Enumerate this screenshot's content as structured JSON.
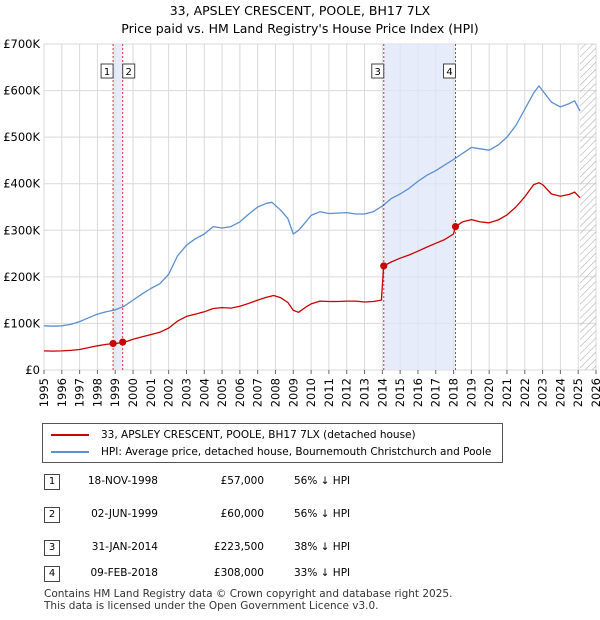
{
  "title": {
    "line1": "33, APSLEY CRESCENT, POOLE, BH17 7LX",
    "line2": "Price paid vs. HM Land Registry's House Price Index (HPI)"
  },
  "chart_data": {
    "type": "line",
    "xlim": [
      1995,
      2026
    ],
    "ylim": [
      0,
      700000
    ],
    "yticks": [
      {
        "value": 0,
        "label": "£0"
      },
      {
        "value": 100000,
        "label": "£100K"
      },
      {
        "value": 200000,
        "label": "£200K"
      },
      {
        "value": 300000,
        "label": "£300K"
      },
      {
        "value": 400000,
        "label": "£400K"
      },
      {
        "value": 500000,
        "label": "£500K"
      },
      {
        "value": 600000,
        "label": "£600K"
      },
      {
        "value": 700000,
        "label": "£700K"
      }
    ],
    "xticks": [
      "1995",
      "1996",
      "1997",
      "1998",
      "1999",
      "2000",
      "2001",
      "2002",
      "2003",
      "2004",
      "2005",
      "2006",
      "2007",
      "2008",
      "2009",
      "2010",
      "2011",
      "2012",
      "2013",
      "2014",
      "2015",
      "2016",
      "2017",
      "2018",
      "2019",
      "2020",
      "2021",
      "2022",
      "2023",
      "2024",
      "2025",
      "2026"
    ],
    "grid": true,
    "shaded_spans": [
      [
        1998.88,
        1999.42
      ],
      [
        2014.08,
        2018.11
      ]
    ],
    "future_hatch_from": 2025.1,
    "series": [
      {
        "name": "33, APSLEY CRESCENT, POOLE, BH17 7LX (detached house)",
        "color": "#cc0000",
        "points": [
          [
            1995.0,
            41000
          ],
          [
            1995.5,
            40500
          ],
          [
            1996.0,
            41000
          ],
          [
            1996.5,
            42000
          ],
          [
            1997.0,
            44000
          ],
          [
            1997.5,
            48000
          ],
          [
            1998.0,
            52000
          ],
          [
            1998.5,
            55000
          ],
          [
            1998.88,
            57000
          ],
          [
            1999.0,
            56500
          ],
          [
            1999.42,
            60000
          ],
          [
            1999.7,
            62000
          ],
          [
            2000.0,
            66000
          ],
          [
            2000.5,
            71000
          ],
          [
            2001.0,
            76000
          ],
          [
            2001.5,
            81000
          ],
          [
            2002.0,
            90000
          ],
          [
            2002.5,
            105000
          ],
          [
            2003.0,
            115000
          ],
          [
            2003.5,
            120000
          ],
          [
            2004.0,
            125000
          ],
          [
            2004.5,
            132000
          ],
          [
            2005.0,
            134000
          ],
          [
            2005.5,
            133000
          ],
          [
            2006.0,
            137000
          ],
          [
            2006.5,
            143000
          ],
          [
            2007.0,
            150000
          ],
          [
            2007.5,
            156000
          ],
          [
            2007.9,
            160000
          ],
          [
            2008.3,
            155000
          ],
          [
            2008.7,
            145000
          ],
          [
            2009.0,
            128000
          ],
          [
            2009.3,
            124000
          ],
          [
            2009.7,
            135000
          ],
          [
            2010.0,
            142000
          ],
          [
            2010.5,
            148000
          ],
          [
            2011.0,
            147000
          ],
          [
            2011.5,
            147000
          ],
          [
            2012.0,
            148000
          ],
          [
            2012.5,
            148000
          ],
          [
            2013.0,
            146000
          ],
          [
            2013.5,
            147000
          ],
          [
            2013.95,
            150000
          ],
          [
            2014.08,
            223500
          ],
          [
            2014.5,
            232000
          ],
          [
            2015.0,
            240000
          ],
          [
            2015.5,
            247000
          ],
          [
            2016.0,
            255000
          ],
          [
            2016.5,
            264000
          ],
          [
            2017.0,
            272000
          ],
          [
            2017.5,
            280000
          ],
          [
            2018.0,
            292000
          ],
          [
            2018.11,
            308000
          ],
          [
            2018.5,
            318000
          ],
          [
            2019.0,
            323000
          ],
          [
            2019.5,
            318000
          ],
          [
            2020.0,
            316000
          ],
          [
            2020.5,
            322000
          ],
          [
            2021.0,
            333000
          ],
          [
            2021.5,
            350000
          ],
          [
            2022.0,
            372000
          ],
          [
            2022.5,
            398000
          ],
          [
            2022.8,
            402000
          ],
          [
            2023.0,
            398000
          ],
          [
            2023.5,
            378000
          ],
          [
            2024.0,
            373000
          ],
          [
            2024.5,
            377000
          ],
          [
            2024.8,
            382000
          ],
          [
            2025.1,
            370000
          ]
        ]
      },
      {
        "name": "HPI: Average price, detached house, Bournemouth Christchurch and Poole",
        "color": "#5b8fd0",
        "points": [
          [
            1995.0,
            95000
          ],
          [
            1995.5,
            94000
          ],
          [
            1996.0,
            95000
          ],
          [
            1996.5,
            98000
          ],
          [
            1997.0,
            104000
          ],
          [
            1997.5,
            112000
          ],
          [
            1998.0,
            120000
          ],
          [
            1998.5,
            125000
          ],
          [
            1999.0,
            129000
          ],
          [
            1999.5,
            137000
          ],
          [
            2000.0,
            150000
          ],
          [
            2000.5,
            163000
          ],
          [
            2001.0,
            175000
          ],
          [
            2001.5,
            185000
          ],
          [
            2002.0,
            205000
          ],
          [
            2002.5,
            245000
          ],
          [
            2003.0,
            268000
          ],
          [
            2003.5,
            282000
          ],
          [
            2004.0,
            292000
          ],
          [
            2004.5,
            308000
          ],
          [
            2005.0,
            305000
          ],
          [
            2005.5,
            308000
          ],
          [
            2006.0,
            318000
          ],
          [
            2006.5,
            335000
          ],
          [
            2007.0,
            350000
          ],
          [
            2007.5,
            358000
          ],
          [
            2007.8,
            360000
          ],
          [
            2008.3,
            343000
          ],
          [
            2008.7,
            325000
          ],
          [
            2009.0,
            292000
          ],
          [
            2009.3,
            300000
          ],
          [
            2009.7,
            318000
          ],
          [
            2010.0,
            332000
          ],
          [
            2010.5,
            340000
          ],
          [
            2011.0,
            336000
          ],
          [
            2011.5,
            337000
          ],
          [
            2012.0,
            338000
          ],
          [
            2012.5,
            335000
          ],
          [
            2013.0,
            335000
          ],
          [
            2013.5,
            340000
          ],
          [
            2014.0,
            352000
          ],
          [
            2014.5,
            368000
          ],
          [
            2015.0,
            378000
          ],
          [
            2015.5,
            390000
          ],
          [
            2016.0,
            405000
          ],
          [
            2016.5,
            418000
          ],
          [
            2017.0,
            428000
          ],
          [
            2017.5,
            440000
          ],
          [
            2018.0,
            452000
          ],
          [
            2018.5,
            465000
          ],
          [
            2019.0,
            478000
          ],
          [
            2019.5,
            475000
          ],
          [
            2020.0,
            472000
          ],
          [
            2020.5,
            483000
          ],
          [
            2021.0,
            500000
          ],
          [
            2021.5,
            525000
          ],
          [
            2022.0,
            560000
          ],
          [
            2022.5,
            595000
          ],
          [
            2022.8,
            610000
          ],
          [
            2023.0,
            600000
          ],
          [
            2023.5,
            575000
          ],
          [
            2024.0,
            565000
          ],
          [
            2024.5,
            572000
          ],
          [
            2024.8,
            578000
          ],
          [
            2025.1,
            556000
          ]
        ]
      }
    ],
    "markers": [
      {
        "id": "1",
        "x": 1998.88,
        "y": 57000
      },
      {
        "id": "2",
        "x": 1999.42,
        "y": 60000
      },
      {
        "id": "3",
        "x": 2014.08,
        "y": 223500
      },
      {
        "id": "4",
        "x": 2018.11,
        "y": 308000
      }
    ]
  },
  "legend": {
    "items": [
      {
        "label": "33, APSLEY CRESCENT, POOLE, BH17 7LX (detached house)",
        "color": "#cc0000"
      },
      {
        "label": "HPI: Average price, detached house, Bournemouth Christchurch and Poole",
        "color": "#5b8fd0"
      }
    ]
  },
  "transactions": [
    {
      "id": "1",
      "date": "18-NOV-1998",
      "price": "£57,000",
      "hpi": "56% ↓ HPI"
    },
    {
      "id": "2",
      "date": "02-JUN-1999",
      "price": "£60,000",
      "hpi": "56% ↓ HPI"
    },
    {
      "id": "3",
      "date": "31-JAN-2014",
      "price": "£223,500",
      "hpi": "38% ↓ HPI"
    },
    {
      "id": "4",
      "date": "09-FEB-2018",
      "price": "£308,000",
      "hpi": "33% ↓ HPI"
    }
  ],
  "footer": {
    "line1": "Contains HM Land Registry data © Crown copyright and database right 2025.",
    "line2": "This data is licensed under the Open Government Licence v3.0."
  }
}
